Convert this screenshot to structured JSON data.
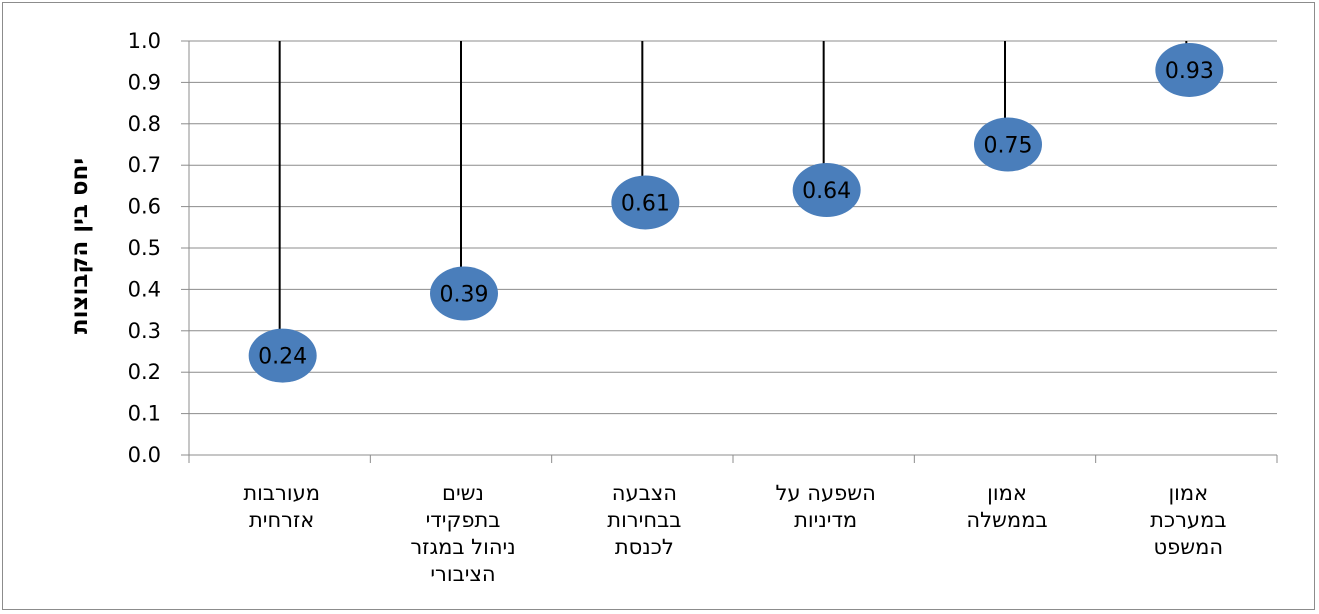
{
  "chart_data": {
    "type": "scatter",
    "title": "",
    "xlabel": "",
    "ylabel": "יחס בין הקבוצות",
    "ylim": [
      0,
      1.0
    ],
    "y_ticks": [
      "0.0",
      "0.1",
      "0.2",
      "0.3",
      "0.4",
      "0.5",
      "0.6",
      "0.7",
      "0.8",
      "0.9",
      "1.0"
    ],
    "grid": true,
    "legend": "none",
    "categories": [
      [
        "מעורבות",
        "אזרחית"
      ],
      [
        "נשים",
        "בתפקידי",
        "ניהול במגזר",
        "הציבורי"
      ],
      [
        "הצבעה",
        "בבחירות",
        "לכנסת"
      ],
      [
        "השפעה על",
        "מדיניות"
      ],
      [
        "אמון",
        "בממשלה"
      ],
      [
        "אמון",
        "במערכת",
        "המשפט"
      ]
    ],
    "values": [
      0.24,
      0.39,
      0.61,
      0.64,
      0.75,
      0.93
    ],
    "data_labels": [
      "0.24",
      "0.39",
      "0.61",
      "0.64",
      "0.75",
      "0.93"
    ],
    "marker_color": "#4a7ebb",
    "drop_line_color": "#000000",
    "drop_lines_to": 1.0
  }
}
